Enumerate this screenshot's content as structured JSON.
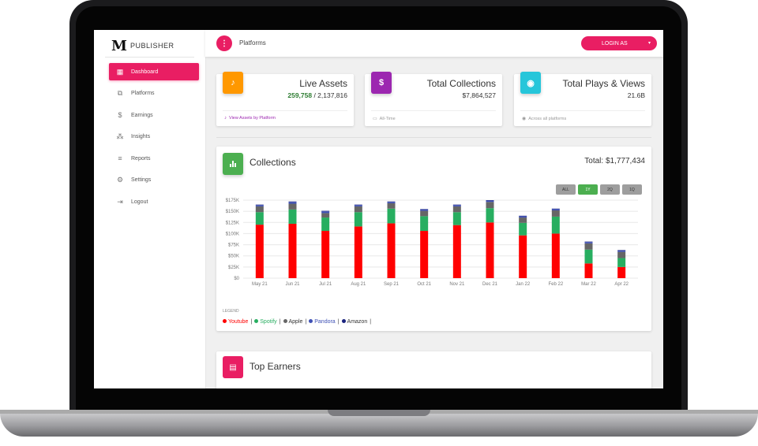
{
  "sidebar": {
    "logo_letter": "M",
    "logo_text": "PUBLISHER",
    "items": [
      {
        "label": "Dashboard",
        "icon": "dashboard-icon",
        "glyph": "▦",
        "active": true
      },
      {
        "label": "Platforms",
        "icon": "library-icon",
        "glyph": "⧉",
        "active": false
      },
      {
        "label": "Earnings",
        "icon": "dollar-icon",
        "glyph": "$",
        "active": false
      },
      {
        "label": "Insights",
        "icon": "bubble-chart-icon",
        "glyph": "⁂",
        "active": false
      },
      {
        "label": "Reports",
        "icon": "list-icon",
        "glyph": "≡",
        "active": false
      },
      {
        "label": "Settings",
        "icon": "gear-icon",
        "glyph": "⚙",
        "active": false
      },
      {
        "label": "Logout",
        "icon": "logout-icon",
        "glyph": "⇥",
        "active": false
      }
    ]
  },
  "topbar": {
    "menu_glyph": "⋮",
    "title": "Platforms",
    "login_label": "LOGIN AS",
    "caret": "▾"
  },
  "stats": [
    {
      "title": "Live Assets",
      "highlight": "259,758",
      "value": " / 2,137,816",
      "footer": "View Assets by Platform",
      "icon": "music-note-icon",
      "glyph": "♪",
      "color": "#ff9800",
      "footer_glyph": "♪",
      "footer_color": "#9c27b0"
    },
    {
      "title": "Total Collections",
      "highlight": "",
      "value": "$7,864,527",
      "footer": "All-Time",
      "icon": "dollar-icon",
      "glyph": "$",
      "color": "#9c27b0",
      "footer_glyph": "▭",
      "footer_color": "#999999"
    },
    {
      "title": "Total Plays & Views",
      "highlight": "",
      "value": "21.6B",
      "footer": "Across all platforms",
      "icon": "eye-icon",
      "glyph": "◉",
      "color": "#26c6da",
      "footer_glyph": "◉",
      "footer_color": "#999999"
    }
  ],
  "collections": {
    "title": "Collections",
    "total": "Total: $1,777,434",
    "filters": [
      {
        "label": "ALL",
        "selected": false
      },
      {
        "label": "1Y",
        "selected": true
      },
      {
        "label": "2Q",
        "selected": false
      },
      {
        "label": "1Q",
        "selected": false
      }
    ],
    "legend_heading": "LEGEND"
  },
  "top_earners": {
    "title": "Top Earners",
    "glyph": "▤"
  },
  "chart_data": {
    "type": "bar",
    "stacked": true,
    "categories": [
      "May 21",
      "Jun 21",
      "Jul 21",
      "Aug 21",
      "Sep 21",
      "Oct 21",
      "Nov 21",
      "Dec 21",
      "Jan 22",
      "Feb 22",
      "Mar 22",
      "Apr 22"
    ],
    "series": [
      {
        "name": "Youtube",
        "color": "#ff0000",
        "values": [
          120000,
          122000,
          106000,
          116000,
          123000,
          106000,
          119000,
          125000,
          96000,
          100000,
          33000,
          25000
        ]
      },
      {
        "name": "Spotify",
        "color": "#27ae60",
        "values": [
          28000,
          32000,
          30000,
          32000,
          33000,
          33000,
          29000,
          32000,
          28000,
          38000,
          31000,
          20000
        ]
      },
      {
        "name": "Apple",
        "color": "#666666",
        "values": [
          13000,
          13000,
          10000,
          13000,
          12000,
          12000,
          13000,
          14000,
          12000,
          14000,
          14000,
          14000
        ]
      },
      {
        "name": "Pandora",
        "color": "#3f51b5",
        "values": [
          3000,
          4000,
          4000,
          3000,
          3000,
          3000,
          3000,
          3000,
          3000,
          3000,
          3000,
          3000
        ]
      },
      {
        "name": "Amazon",
        "color": "#1a237e",
        "values": [
          1000,
          1000,
          1000,
          1000,
          1000,
          1000,
          1000,
          1000,
          1000,
          1000,
          1000,
          1000
        ]
      }
    ],
    "y_ticks": [
      "$0",
      "$25K",
      "$50K",
      "$75K",
      "$100K",
      "$125K",
      "$150K",
      "$175K"
    ],
    "ylim": [
      0,
      175000
    ],
    "grid": true,
    "legend_position": "bottom-left"
  }
}
